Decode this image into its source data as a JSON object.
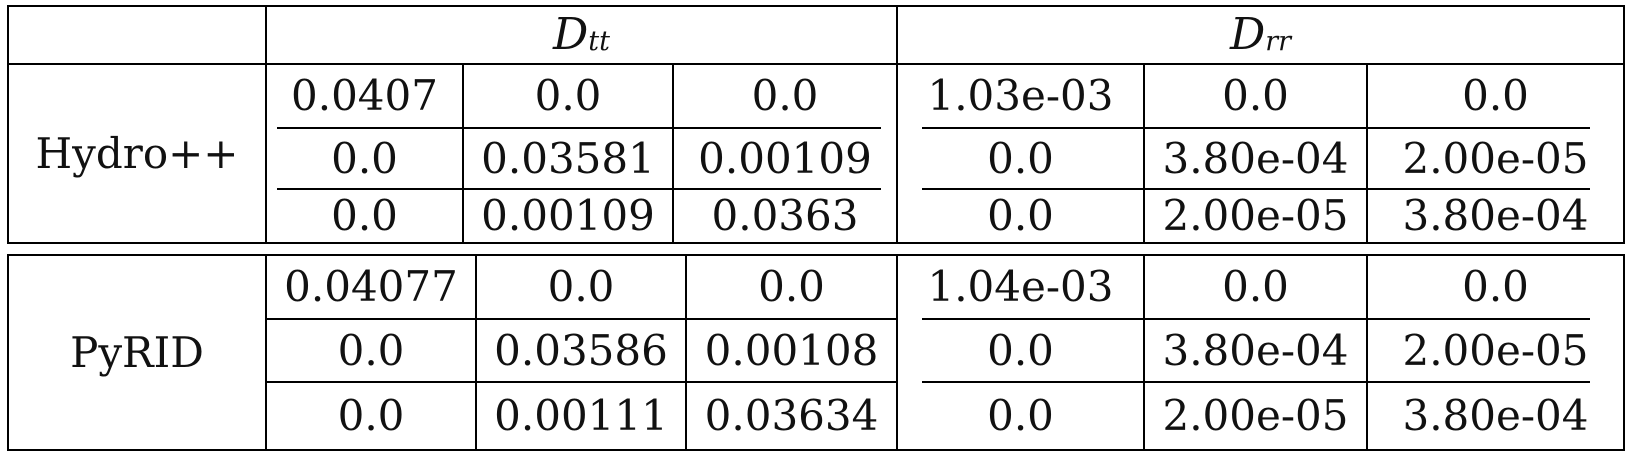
{
  "header": {
    "dtt": {
      "main": "D",
      "sub": "tt"
    },
    "drr": {
      "main": "D",
      "sub": "rr"
    }
  },
  "rows": [
    {
      "label": "Hydro++",
      "dtt": [
        [
          "0.0407",
          "0.0",
          "0.0"
        ],
        [
          "0.0",
          "0.03581",
          "0.00109"
        ],
        [
          "0.0",
          "0.00109",
          "0.0363"
        ]
      ],
      "drr": [
        [
          "1.03e-03",
          "0.0",
          "0.0"
        ],
        [
          "0.0",
          "3.80e-04",
          "2.00e-05"
        ],
        [
          "0.0",
          "2.00e-05",
          "3.80e-04"
        ]
      ]
    },
    {
      "label": "PyRID",
      "dtt": [
        [
          "0.04077",
          "0.0",
          "0.0"
        ],
        [
          "0.0",
          "0.03586",
          "0.00108"
        ],
        [
          "0.0",
          "0.00111",
          "0.03634"
        ]
      ],
      "drr": [
        [
          "1.04e-03",
          "0.0",
          "0.0"
        ],
        [
          "0.0",
          "3.80e-04",
          "2.00e-05"
        ],
        [
          "0.0",
          "2.00e-05",
          "3.80e-04"
        ]
      ]
    }
  ]
}
